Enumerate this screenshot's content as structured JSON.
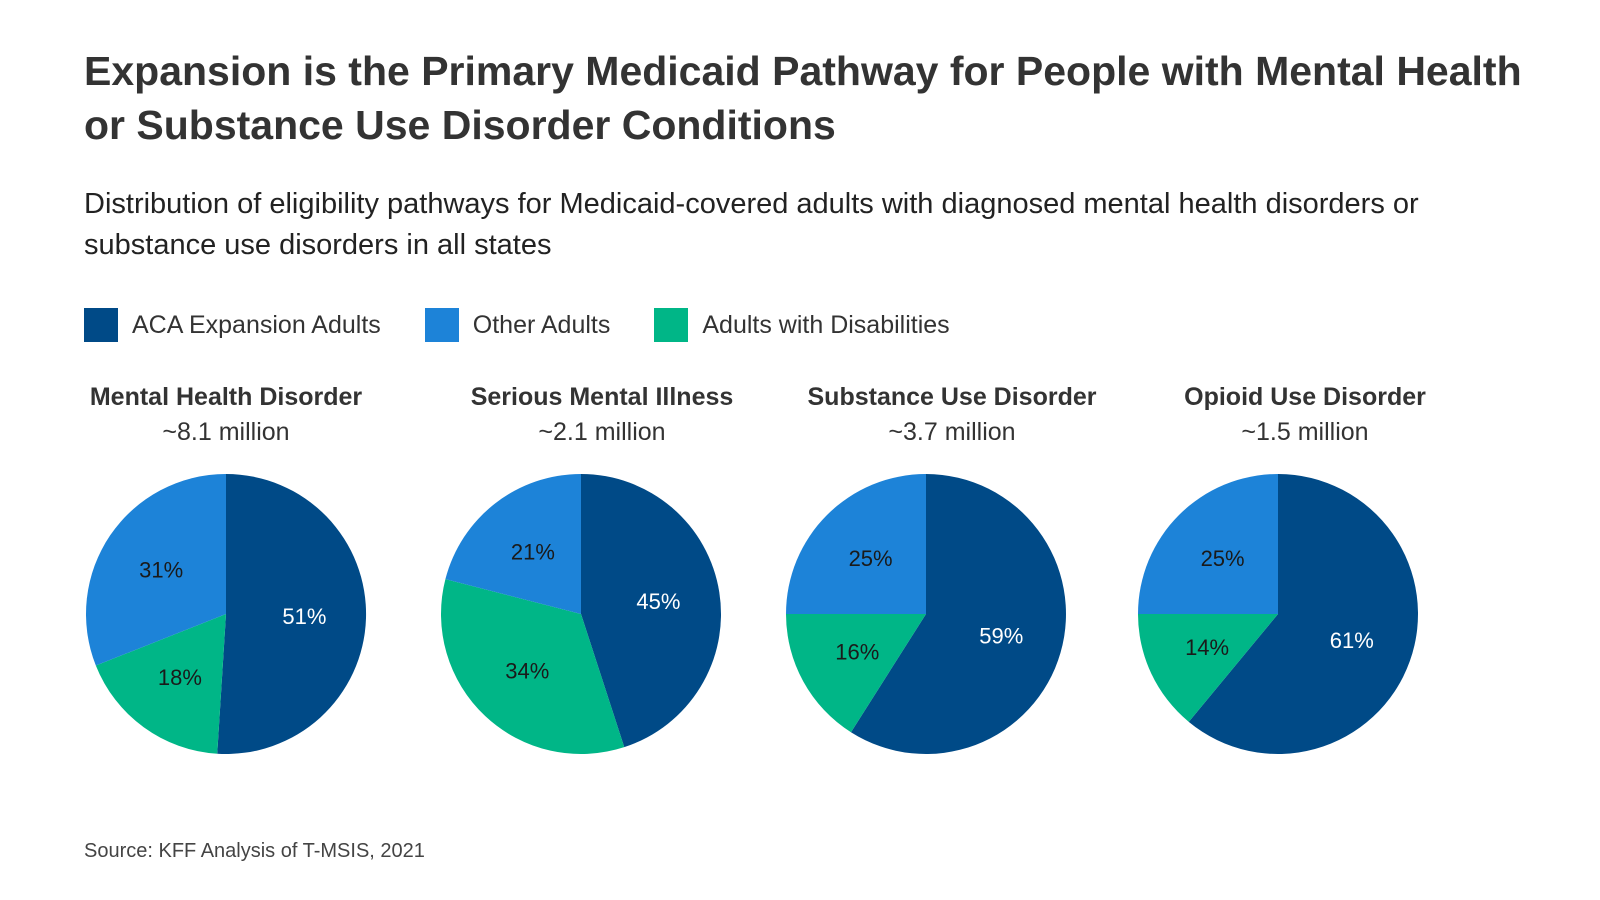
{
  "title": "Expansion is the Primary Medicaid Pathway for People with Mental Health or Substance Use Disorder Conditions",
  "subtitle": "Distribution of eligibility pathways for Medicaid-covered adults with diagnosed mental health disorders or substance use disorders in all states",
  "legend": [
    {
      "label": "ACA Expansion Adults",
      "color": "#004a87"
    },
    {
      "label": "Other Adults",
      "color": "#1d83d8"
    },
    {
      "label": "Adults with Disabilities",
      "color": "#00b687"
    }
  ],
  "source": "Source: KFF Analysis of T-MSIS, 2021",
  "chart_data": [
    {
      "type": "pie",
      "title": "Mental Health Disorder",
      "total": "~8.1 million",
      "slices": [
        {
          "name": "ACA Expansion Adults",
          "value": 51,
          "label": "51%"
        },
        {
          "name": "Adults with Disabilities",
          "value": 18,
          "label": "18%"
        },
        {
          "name": "Other Adults",
          "value": 31,
          "label": "31%"
        }
      ]
    },
    {
      "type": "pie",
      "title": "Serious Mental Illness",
      "total": "~2.1 million",
      "slices": [
        {
          "name": "ACA Expansion Adults",
          "value": 45,
          "label": "45%"
        },
        {
          "name": "Adults with Disabilities",
          "value": 34,
          "label": "34%"
        },
        {
          "name": "Other Adults",
          "value": 21,
          "label": "21%"
        }
      ]
    },
    {
      "type": "pie",
      "title": "Substance Use Disorder",
      "total": "~3.7 million",
      "slices": [
        {
          "name": "ACA Expansion Adults",
          "value": 59,
          "label": "59%"
        },
        {
          "name": "Adults with Disabilities",
          "value": 16,
          "label": "16%"
        },
        {
          "name": "Other Adults",
          "value": 25,
          "label": "25%"
        }
      ]
    },
    {
      "type": "pie",
      "title": "Opioid Use Disorder",
      "total": "~1.5 million",
      "slices": [
        {
          "name": "ACA Expansion Adults",
          "value": 61,
          "label": "61%"
        },
        {
          "name": "Adults with Disabilities",
          "value": 14,
          "label": "14%"
        },
        {
          "name": "Other Adults",
          "value": 25,
          "label": "25%"
        }
      ]
    }
  ]
}
